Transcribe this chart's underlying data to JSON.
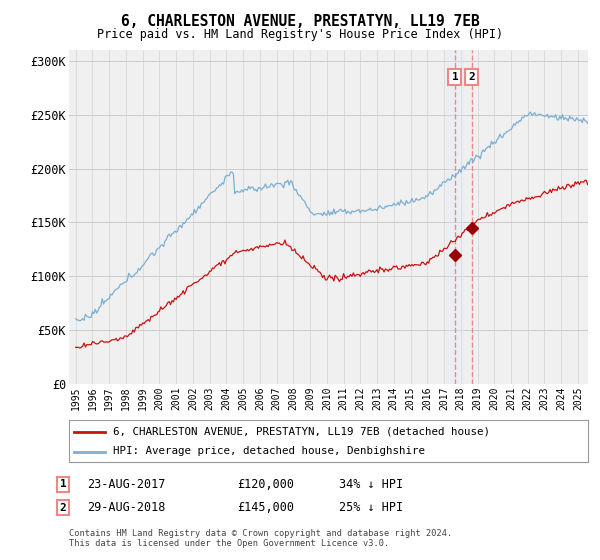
{
  "title": "6, CHARLESTON AVENUE, PRESTATYN, LL19 7EB",
  "subtitle": "Price paid vs. HM Land Registry's House Price Index (HPI)",
  "background_color": "#ffffff",
  "plot_bg_color": "#f0f0f0",
  "grid_color": "#cccccc",
  "ylim": [
    0,
    310000
  ],
  "yticks": [
    0,
    50000,
    100000,
    150000,
    200000,
    250000,
    300000
  ],
  "ytick_labels": [
    "£0",
    "£50K",
    "£100K",
    "£150K",
    "£200K",
    "£250K",
    "£300K"
  ],
  "sale1": {
    "date": "23-AUG-2017",
    "price": 120000,
    "pct": "34%",
    "label": "1",
    "year": 2017.65
  },
  "sale2": {
    "date": "29-AUG-2018",
    "price": 145000,
    "pct": "25%",
    "label": "2",
    "year": 2018.65
  },
  "legend_line1": "6, CHARLESTON AVENUE, PRESTATYN, LL19 7EB (detached house)",
  "legend_line2": "HPI: Average price, detached house, Denbighshire",
  "footer1": "Contains HM Land Registry data © Crown copyright and database right 2024.",
  "footer2": "This data is licensed under the Open Government Licence v3.0.",
  "hpi_color": "#7ab0d4",
  "price_color": "#cc1111",
  "marker_color": "#990000",
  "vline_color": "#ee8888",
  "vband_color": "#ddeeff"
}
